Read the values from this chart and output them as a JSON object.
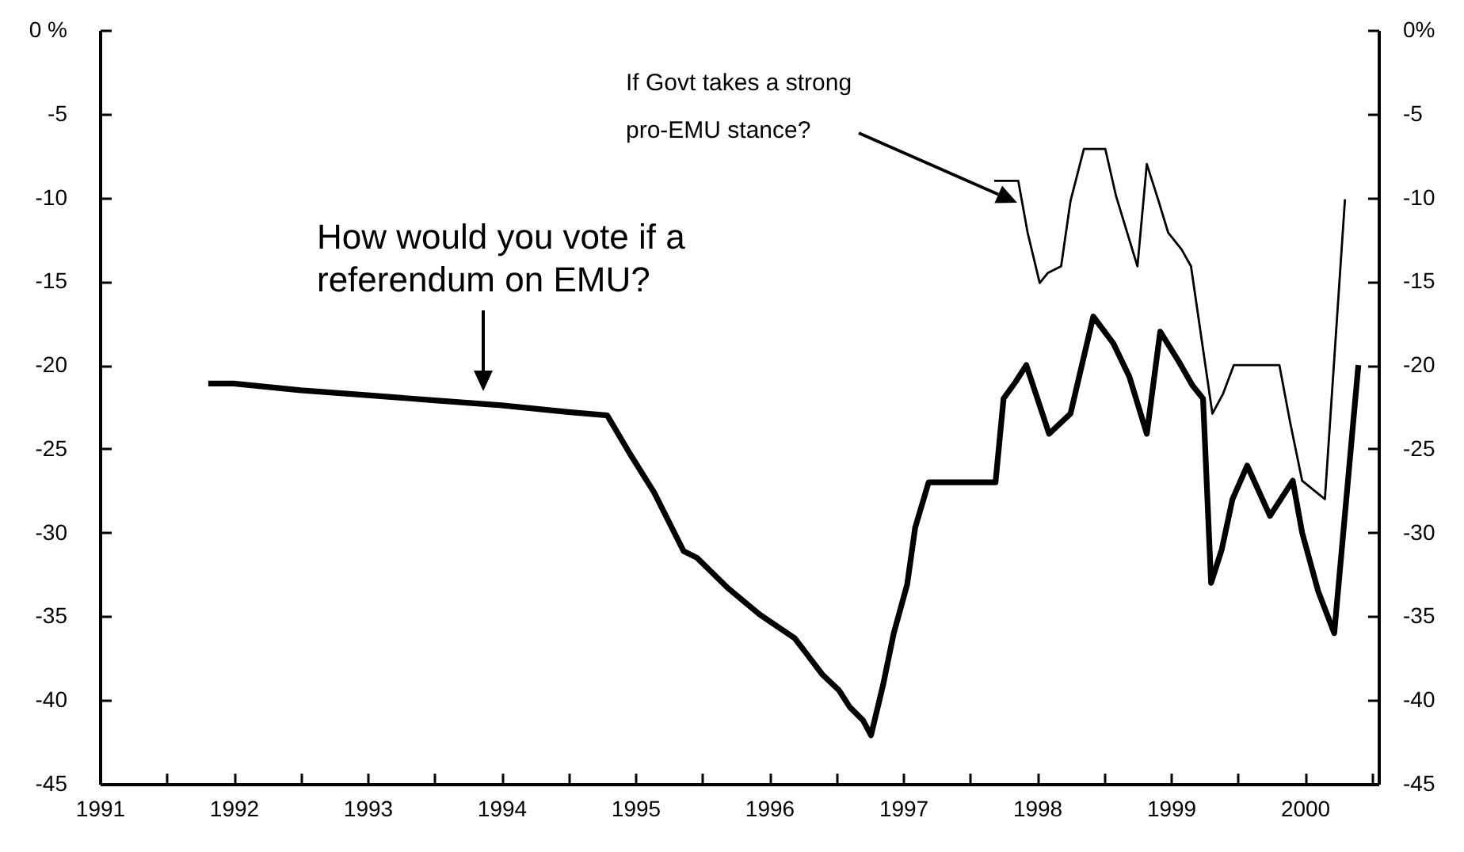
{
  "chart_data": {
    "type": "line",
    "series": [
      {
        "color": "#000000",
        "x": [
          1991.81,
          1992.0,
          1992.5,
          1993.0,
          1993.5,
          1994.0,
          1994.5,
          1994.79,
          1994.96,
          1995.14,
          1995.36,
          1995.46,
          1995.69,
          1995.93,
          1996.19,
          1996.4,
          1996.52,
          1996.6,
          1996.7,
          1996.76,
          1996.85,
          1996.93,
          1997.03,
          1997.09,
          1997.19,
          1997.69,
          1997.75,
          1997.84,
          1997.92,
          1998.09,
          1998.25,
          1998.42,
          1998.57,
          1998.69,
          1998.82,
          1998.92,
          1999.06,
          1999.16,
          1999.24,
          1999.3,
          1999.38,
          1999.46,
          1999.57,
          1999.74,
          1999.91,
          1999.98,
          2000.1,
          2000.22,
          2000.4
        ],
        "values": [
          -21.1,
          -21.1,
          -21.5,
          -21.8,
          -22.1,
          -22.4,
          -22.8,
          -23.0,
          -25.3,
          -27.6,
          -31.1,
          -31.5,
          -33.3,
          -34.9,
          -36.3,
          -38.5,
          -39.4,
          -40.4,
          -41.2,
          -42.1,
          -39.1,
          -36.0,
          -33.1,
          -29.7,
          -27.0,
          -27.0,
          -22.0,
          -21.0,
          -20.0,
          -24.1,
          -22.9,
          -17.1,
          -18.7,
          -20.7,
          -24.1,
          -18.0,
          -19.8,
          -21.2,
          -22.0,
          -33.0,
          -31.0,
          -28.0,
          -26.0,
          -29.0,
          -26.9,
          -30.0,
          -33.5,
          -36.0,
          -20.0
        ]
      },
      {
        "color": "#000000",
        "x": [
          1997.68,
          1997.86,
          1997.93,
          1998.02,
          1998.08,
          1998.18,
          1998.25,
          1998.35,
          1998.51,
          1998.59,
          1998.75,
          1998.82,
          1998.9,
          1998.98,
          1999.08,
          1999.15,
          1999.31,
          1999.39,
          1999.47,
          1999.81,
          1999.89,
          1999.98,
          2000.15,
          2000.3
        ],
        "values": [
          -9.0,
          -9.0,
          -12.1,
          -15.1,
          -14.5,
          -14.1,
          -10.2,
          -7.1,
          -7.1,
          -9.9,
          -14.1,
          -8.0,
          -10.0,
          -12.1,
          -13.1,
          -14.1,
          -22.9,
          -21.7,
          -20.0,
          -20.0,
          -23.4,
          -26.9,
          -28.0,
          -10.1
        ]
      }
    ],
    "xlim": [
      1991,
      2000.55
    ],
    "xticks": [
      1991,
      {
        "value": 1991.5,
        "label": null
      },
      1992,
      {
        "value": 1992.5,
        "label": null
      },
      1993,
      {
        "value": 1993.5,
        "label": null
      },
      1994,
      {
        "value": 1994.5,
        "label": null
      },
      1995,
      {
        "value": 1995.5,
        "label": null
      },
      1996,
      {
        "value": 1996.5,
        "label": null
      },
      1997,
      {
        "value": 1997.5,
        "label": null
      },
      1998,
      {
        "value": 1998.5,
        "label": null
      },
      1999,
      {
        "value": 1999.5,
        "label": null
      },
      2000,
      {
        "value": 2000.5,
        "label": null
      }
    ],
    "ylim": [
      -45,
      0
    ],
    "yticks": [
      {
        "value": 0,
        "label": "0 %"
      },
      -5,
      -10,
      -15,
      -20,
      -25,
      -30,
      -35,
      -40,
      -45
    ],
    "y2lim": [
      -45,
      0
    ],
    "y2ticks": [
      {
        "value": 0,
        "label": "0%"
      },
      -5,
      -10,
      -15,
      -20,
      -25,
      -30,
      -35,
      -40,
      -45
    ],
    "annotations": [
      "How would you vote if a referendum on EMU?",
      "If Govt takes a strong pro-EMU stance?"
    ],
    "grid": false,
    "line_style": "solid"
  }
}
